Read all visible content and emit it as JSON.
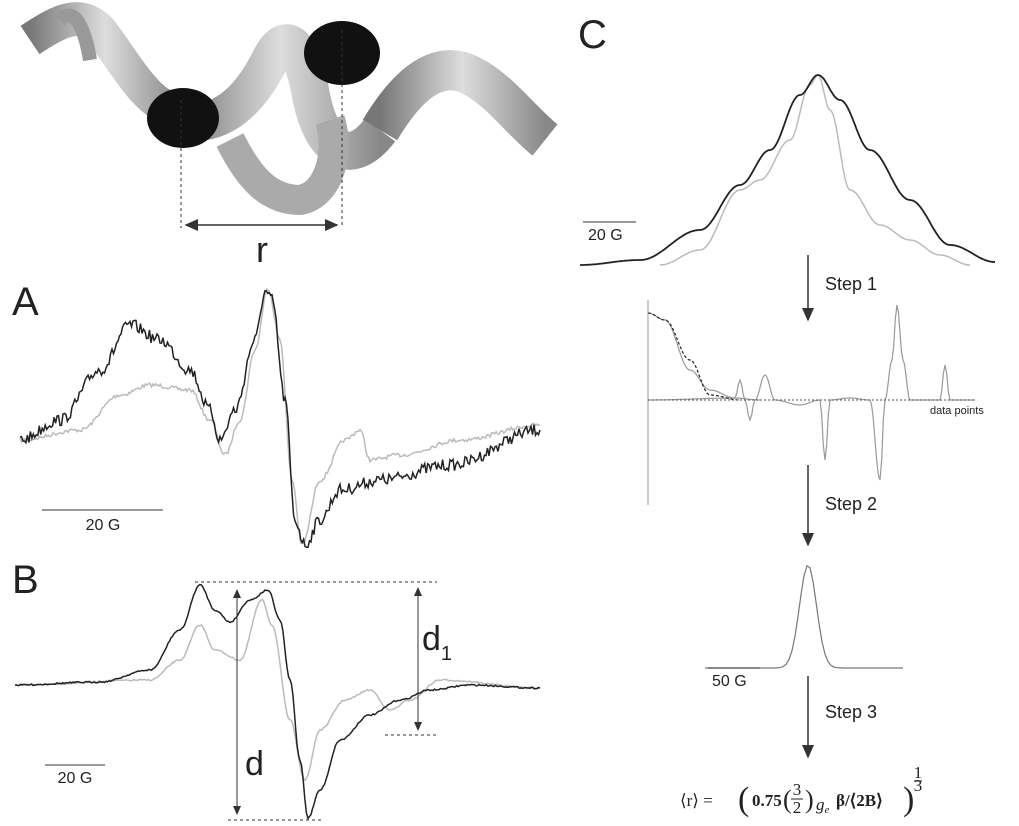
{
  "panels": {
    "helix": {
      "distance_label": "r"
    },
    "A": {
      "label": "A",
      "scale_bar": "20 G"
    },
    "B": {
      "label": "B",
      "scale_bar": "20 G",
      "d_label": "d",
      "d1_label": "d",
      "d1_subscript": "1"
    },
    "C": {
      "label": "C",
      "scale_bar_top": "20 G",
      "step1": "Step 1",
      "axis_note": "data points",
      "step2": "Step 2",
      "scale_bar_bottom": "50 G",
      "step3": "Step 3",
      "formula": {
        "lhs": "⟨r⟩ =",
        "coef": "0.75",
        "frac_num": "3",
        "frac_den": "2",
        "g": "g",
        "g_sub": "e",
        "rest": "β/⟨2B⟩",
        "exp_num": "1",
        "exp_den": "3"
      }
    }
  }
}
